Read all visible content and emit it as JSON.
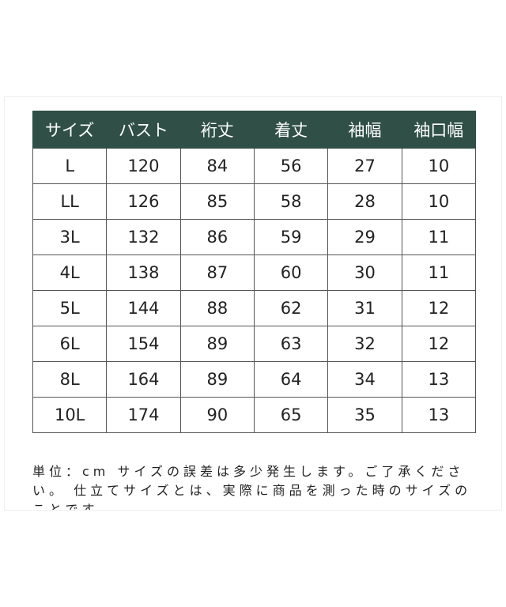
{
  "table": {
    "header": [
      "サイズ",
      "バスト",
      "裄丈",
      "着丈",
      "袖幅",
      "袖口幅"
    ],
    "rows": [
      [
        "L",
        120,
        84,
        56,
        27,
        10
      ],
      [
        "LL",
        126,
        85,
        58,
        28,
        10
      ],
      [
        "3L",
        132,
        86,
        59,
        29,
        11
      ],
      [
        "4L",
        138,
        87,
        60,
        30,
        11
      ],
      [
        "5L",
        144,
        88,
        62,
        31,
        12
      ],
      [
        "6L",
        154,
        89,
        63,
        32,
        12
      ],
      [
        "8L",
        164,
        89,
        64,
        34,
        13
      ],
      [
        "10L",
        174,
        90,
        65,
        35,
        13
      ]
    ]
  },
  "note": "単位：cm サイズの誤差は多少発生します。ご了承ください。 仕立てサイズとは、実際に商品を測った時のサイズのことです。"
}
